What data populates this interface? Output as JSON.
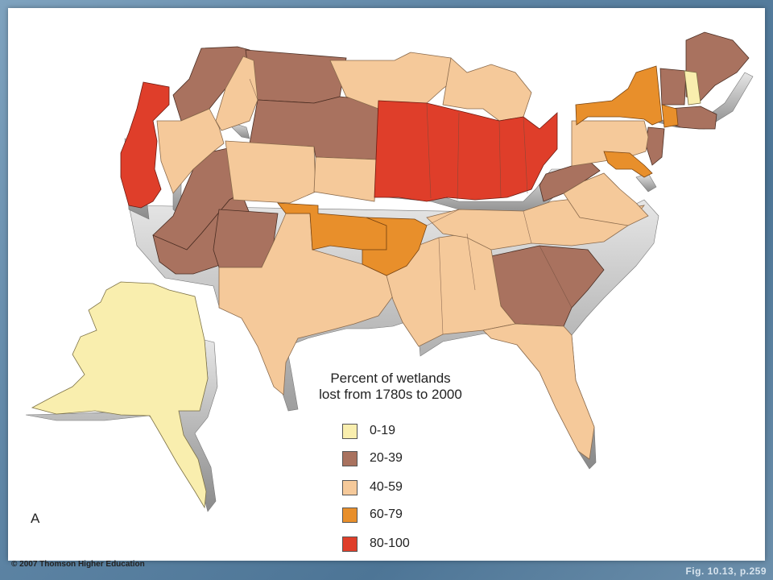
{
  "legend": {
    "title_line1": "Percent of wetlands",
    "title_line2": "lost from 1780s to 2000",
    "items": [
      {
        "label": "0-19",
        "color": "#f9eeae"
      },
      {
        "label": "20-39",
        "color": "#a9725f"
      },
      {
        "label": "40-59",
        "color": "#f5c99a"
      },
      {
        "label": "60-79",
        "color": "#e88f2b"
      },
      {
        "label": "80-100",
        "color": "#df3e2a"
      }
    ]
  },
  "panel_letter": "A",
  "copyright": "© 2007 Thomson Higher Education",
  "caption": "Fig. 10.13, p.259"
}
